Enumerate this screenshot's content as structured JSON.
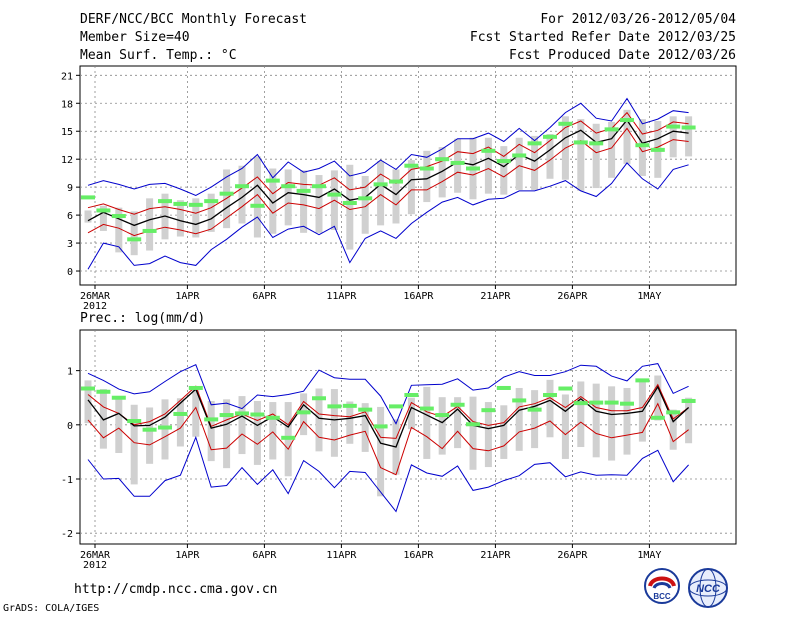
{
  "header": {
    "title": "DERF/NCC/BCC Monthly Forecast",
    "member_size": "Member Size=40",
    "variable": "Mean Surf. Temp.: °C",
    "period": "For 2012/03/26-2012/05/04",
    "fcst_started": "Fcst Started Refer Date 2012/03/25",
    "fcst_produced": "Fcst Produced Date 2012/03/26"
  },
  "footer": {
    "url": "http://cmdp.ncc.cma.gov.cn",
    "credit": "GrADS: COLA/IGES",
    "logo_bcc_text": "BCC",
    "logo_ncc_text": "NCC"
  },
  "colors": {
    "envelope": "#0000cc",
    "spread": "#cc0000",
    "mean": "#000000",
    "observed_marker": "#66ee66",
    "box": "#d0d0d0",
    "grid": "#888888"
  },
  "chart_data": [
    {
      "type": "line",
      "title": "Mean Surf. Temp.: °C",
      "x_tick_labels": [
        "26MAR",
        "1APR",
        "6APR",
        "11APR",
        "16APR",
        "21APR",
        "26APR",
        "1MAY"
      ],
      "x_tick_index": [
        0,
        6,
        11,
        16,
        21,
        26,
        31,
        36
      ],
      "x_year_label": "2012",
      "y_ticks": [
        0,
        3,
        6,
        9,
        12,
        15,
        18,
        21
      ],
      "ylim": [
        -1.5,
        22
      ],
      "series": [
        {
          "name": "max",
          "values": [
            9.2,
            9.7,
            9.3,
            8.8,
            9.3,
            9.4,
            8.8,
            8.1,
            9.0,
            10.1,
            11.0,
            12.5,
            10.0,
            11.7,
            10.6,
            11.0,
            11.8,
            10.2,
            10.6,
            11.9,
            10.9,
            12.5,
            12.2,
            13.1,
            14.2,
            14.2,
            14.8,
            13.9,
            15.3,
            14.0,
            15.4,
            17.0,
            18.0,
            16.4,
            16.1,
            18.5,
            15.8,
            16.3,
            17.2,
            17.0
          ]
        },
        {
          "name": "spread_upper",
          "values": [
            6.8,
            7.2,
            6.6,
            6.1,
            6.7,
            6.9,
            6.6,
            6.2,
            6.8,
            7.8,
            8.9,
            10.1,
            8.3,
            9.5,
            9.3,
            9.2,
            10.0,
            8.7,
            9.0,
            10.4,
            9.4,
            10.9,
            11.2,
            11.8,
            12.8,
            12.6,
            13.3,
            12.3,
            13.6,
            12.7,
            14.0,
            15.4,
            16.1,
            14.8,
            15.3,
            17.0,
            14.7,
            15.1,
            16.0,
            15.8
          ]
        },
        {
          "name": "mean",
          "values": [
            5.4,
            6.3,
            5.6,
            4.9,
            5.5,
            5.9,
            5.4,
            5.0,
            5.6,
            6.8,
            7.9,
            9.2,
            7.3,
            8.4,
            8.2,
            7.9,
            8.8,
            7.6,
            7.9,
            9.3,
            8.2,
            9.8,
            9.9,
            10.7,
            11.7,
            11.4,
            12.1,
            11.2,
            12.5,
            11.8,
            13.0,
            14.3,
            15.1,
            13.8,
            14.2,
            16.2,
            13.7,
            14.2,
            15.0,
            14.8
          ]
        },
        {
          "name": "spread_lower",
          "values": [
            4.1,
            5.0,
            4.6,
            3.8,
            4.3,
            4.7,
            4.4,
            4.0,
            4.5,
            5.7,
            6.9,
            8.2,
            6.2,
            7.3,
            7.1,
            6.7,
            7.6,
            6.6,
            6.9,
            8.2,
            7.1,
            8.7,
            8.7,
            9.6,
            10.6,
            10.3,
            11.0,
            10.1,
            11.3,
            10.8,
            11.9,
            13.2,
            14.0,
            12.7,
            13.2,
            15.3,
            12.8,
            13.3,
            14.1,
            13.9
          ]
        },
        {
          "name": "min",
          "values": [
            0.2,
            3.0,
            2.6,
            0.6,
            0.8,
            1.6,
            0.9,
            0.6,
            2.3,
            3.4,
            4.7,
            5.8,
            3.6,
            4.5,
            4.8,
            3.9,
            4.8,
            0.9,
            3.5,
            4.3,
            3.5,
            5.1,
            6.3,
            7.4,
            7.9,
            7.1,
            7.7,
            7.8,
            8.6,
            8.6,
            9.1,
            9.7,
            8.6,
            8.0,
            9.4,
            11.6,
            9.9,
            8.8,
            10.9,
            11.4
          ]
        },
        {
          "name": "box_top",
          "values": [
            6.5,
            7.0,
            6.8,
            6.4,
            7.8,
            8.3,
            7.6,
            7.8,
            8.3,
            10.9,
            11.3,
            12.3,
            11.0,
            10.9,
            10.8,
            10.3,
            10.8,
            11.4,
            10.2,
            11.8,
            10.9,
            11.9,
            12.9,
            13.3,
            14.2,
            14.3,
            14.3,
            13.4,
            14.3,
            14.5,
            14.7,
            16.6,
            16.3,
            15.8,
            16.0,
            17.3,
            16.3,
            16.1,
            16.6,
            16.6
          ]
        },
        {
          "name": "box_bottom",
          "values": [
            5.2,
            4.3,
            2.0,
            1.7,
            2.2,
            3.4,
            3.7,
            3.6,
            4.2,
            4.6,
            5.1,
            3.6,
            4.0,
            4.9,
            4.1,
            4.1,
            4.4,
            2.3,
            4.0,
            4.9,
            5.1,
            6.1,
            7.4,
            7.9,
            8.4,
            7.7,
            8.3,
            8.2,
            8.7,
            8.7,
            9.9,
            9.8,
            8.6,
            8.9,
            10.0,
            11.5,
            10.2,
            10.0,
            12.2,
            12.3
          ]
        },
        {
          "name": "observed",
          "values": [
            7.9,
            6.5,
            5.9,
            3.4,
            4.3,
            7.5,
            7.2,
            7.1,
            7.5,
            8.3,
            9.1,
            7.0,
            9.7,
            9.1,
            8.6,
            9.1,
            8.2,
            7.3,
            7.8,
            9.3,
            9.6,
            11.3,
            11.0,
            12.0,
            11.6,
            11.0,
            12.9,
            11.8,
            12.4,
            13.7,
            14.4,
            15.8,
            13.8,
            13.7,
            15.2,
            16.2,
            13.5,
            13.0,
            15.5,
            15.4
          ]
        }
      ]
    },
    {
      "type": "line",
      "title": "Prec.: log(mm/d)",
      "x_tick_labels": [
        "26MAR",
        "1APR",
        "6APR",
        "11APR",
        "16APR",
        "21APR",
        "26APR",
        "1MAY"
      ],
      "x_tick_index": [
        0,
        6,
        11,
        16,
        21,
        26,
        31,
        36
      ],
      "x_year_label": "2012",
      "y_ticks": [
        -2,
        -1,
        0,
        1
      ],
      "ylim": [
        -2.2,
        1.75
      ],
      "series": [
        {
          "name": "max",
          "values": [
            0.95,
            0.82,
            0.66,
            0.57,
            0.61,
            0.8,
            0.98,
            1.11,
            0.37,
            0.4,
            0.3,
            0.55,
            0.52,
            0.56,
            0.62,
            1.01,
            0.87,
            0.84,
            0.84,
            0.53,
            0.02,
            0.73,
            0.74,
            0.75,
            0.85,
            0.64,
            0.68,
            0.88,
            0.98,
            0.91,
            0.91,
            0.98,
            1.1,
            1.08,
            0.9,
            0.81,
            1.08,
            1.13,
            0.58,
            0.71
          ]
        },
        {
          "name": "spread_upper",
          "values": [
            0.56,
            0.33,
            0.21,
            0.0,
            0.06,
            0.2,
            0.45,
            0.71,
            -0.03,
            0.09,
            0.2,
            0.08,
            0.2,
            0.0,
            0.43,
            0.2,
            0.17,
            0.15,
            0.24,
            -0.23,
            -0.25,
            0.41,
            0.24,
            0.15,
            0.34,
            0.06,
            -0.01,
            0.04,
            0.33,
            0.39,
            0.5,
            0.32,
            0.52,
            0.32,
            0.26,
            0.26,
            0.32,
            0.74,
            0.11,
            0.32
          ]
        },
        {
          "name": "mean",
          "values": [
            0.46,
            0.09,
            0.21,
            -0.02,
            -0.01,
            0.14,
            0.4,
            0.66,
            -0.06,
            0.01,
            0.16,
            -0.01,
            0.15,
            -0.04,
            0.37,
            0.12,
            0.09,
            0.12,
            0.17,
            -0.34,
            -0.41,
            0.32,
            0.18,
            0.04,
            0.29,
            -0.01,
            -0.07,
            -0.01,
            0.27,
            0.34,
            0.45,
            0.25,
            0.48,
            0.25,
            0.19,
            0.21,
            0.25,
            0.7,
            0.06,
            0.32
          ]
        },
        {
          "name": "spread_lower",
          "values": [
            0.09,
            -0.24,
            -0.06,
            -0.33,
            -0.37,
            -0.22,
            -0.06,
            0.32,
            -0.46,
            -0.43,
            -0.17,
            -0.36,
            -0.13,
            -0.45,
            0.06,
            -0.23,
            -0.28,
            -0.19,
            -0.12,
            -0.79,
            -0.92,
            -0.05,
            -0.22,
            -0.44,
            -0.12,
            -0.44,
            -0.48,
            -0.39,
            -0.13,
            -0.06,
            0.07,
            -0.18,
            0.05,
            -0.16,
            -0.24,
            -0.19,
            -0.14,
            0.39,
            -0.31,
            -0.09
          ]
        },
        {
          "name": "min",
          "values": [
            -0.64,
            -1.0,
            -0.99,
            -1.32,
            -1.32,
            -1.03,
            -0.93,
            -0.23,
            -1.15,
            -1.12,
            -0.79,
            -1.1,
            -0.83,
            -1.27,
            -0.66,
            -0.86,
            -1.16,
            -0.86,
            -0.88,
            -1.24,
            -1.6,
            -0.74,
            -0.89,
            -0.95,
            -0.76,
            -1.21,
            -1.15,
            -1.03,
            -0.94,
            -0.73,
            -0.7,
            -0.96,
            -0.87,
            -0.93,
            -0.92,
            -0.93,
            -0.62,
            -0.47,
            -1.05,
            -0.74
          ]
        },
        {
          "name": "box_top",
          "values": [
            0.82,
            0.66,
            0.53,
            0.37,
            0.32,
            0.47,
            0.49,
            0.69,
            0.44,
            0.47,
            0.53,
            0.44,
            0.42,
            0.42,
            0.58,
            0.67,
            0.66,
            0.43,
            0.4,
            0.33,
            0.1,
            0.5,
            0.7,
            0.51,
            0.51,
            0.52,
            0.42,
            0.36,
            0.68,
            0.64,
            0.83,
            0.56,
            0.8,
            0.76,
            0.71,
            0.68,
            0.83,
            0.91,
            0.28,
            0.5
          ]
        },
        {
          "name": "box_bottom",
          "values": [
            0.03,
            -0.44,
            -0.52,
            -1.1,
            -0.72,
            -0.64,
            -0.4,
            -0.22,
            -0.67,
            -0.8,
            -0.54,
            -0.74,
            -0.64,
            -0.95,
            -0.19,
            -0.49,
            -0.59,
            -0.35,
            -0.5,
            -1.32,
            -0.92,
            -0.08,
            -0.63,
            -0.55,
            -0.43,
            -0.83,
            -0.78,
            -0.63,
            -0.48,
            -0.43,
            -0.23,
            -0.63,
            -0.41,
            -0.6,
            -0.66,
            -0.55,
            -0.31,
            0.08,
            -0.46,
            -0.34
          ]
        },
        {
          "name": "observed",
          "values": [
            0.67,
            0.61,
            0.5,
            0.07,
            -0.09,
            -0.05,
            0.2,
            0.68,
            0.1,
            0.18,
            0.21,
            0.19,
            0.13,
            -0.24,
            0.23,
            0.49,
            0.34,
            0.35,
            0.28,
            -0.03,
            0.34,
            0.55,
            0.3,
            0.18,
            0.37,
            0.01,
            0.27,
            0.68,
            0.45,
            0.28,
            0.55,
            0.67,
            0.4,
            0.41,
            0.41,
            0.39,
            0.82,
            0.13,
            0.23,
            0.44
          ]
        }
      ]
    }
  ]
}
